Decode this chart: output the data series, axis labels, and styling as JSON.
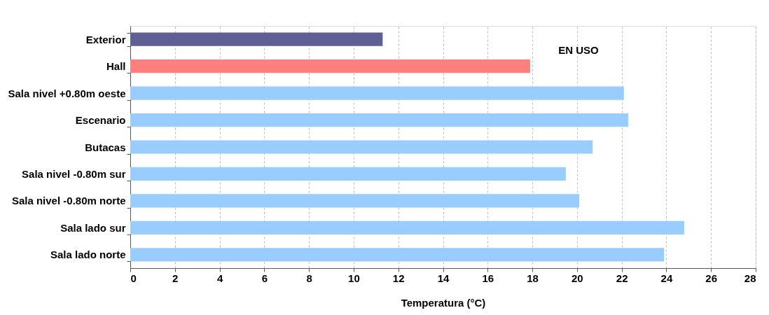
{
  "chart_data": {
    "type": "bar",
    "orientation": "horizontal",
    "xlabel": "Temperatura (°C)",
    "categories": [
      "Exterior",
      "Hall",
      "Sala nivel +0.80m oeste",
      "Escenario",
      "Butacas",
      "Sala nivel -0.80m sur",
      "Sala nivel -0.80m norte",
      "Sala lado sur",
      "Sala lado norte"
    ],
    "values": [
      11.3,
      17.9,
      22.1,
      22.3,
      20.7,
      19.5,
      20.1,
      24.8,
      23.9
    ],
    "colors": [
      "#5f5f96",
      "#ff7f7f",
      "#99ccff",
      "#99ccff",
      "#99ccff",
      "#99ccff",
      "#99ccff",
      "#99ccff",
      "#99ccff"
    ],
    "xlim": [
      0,
      28
    ],
    "xticks": [
      0,
      2,
      4,
      6,
      8,
      10,
      12,
      14,
      16,
      18,
      20,
      22,
      24,
      26,
      28
    ],
    "grid": "x",
    "annotations": [
      "EN USO"
    ]
  }
}
